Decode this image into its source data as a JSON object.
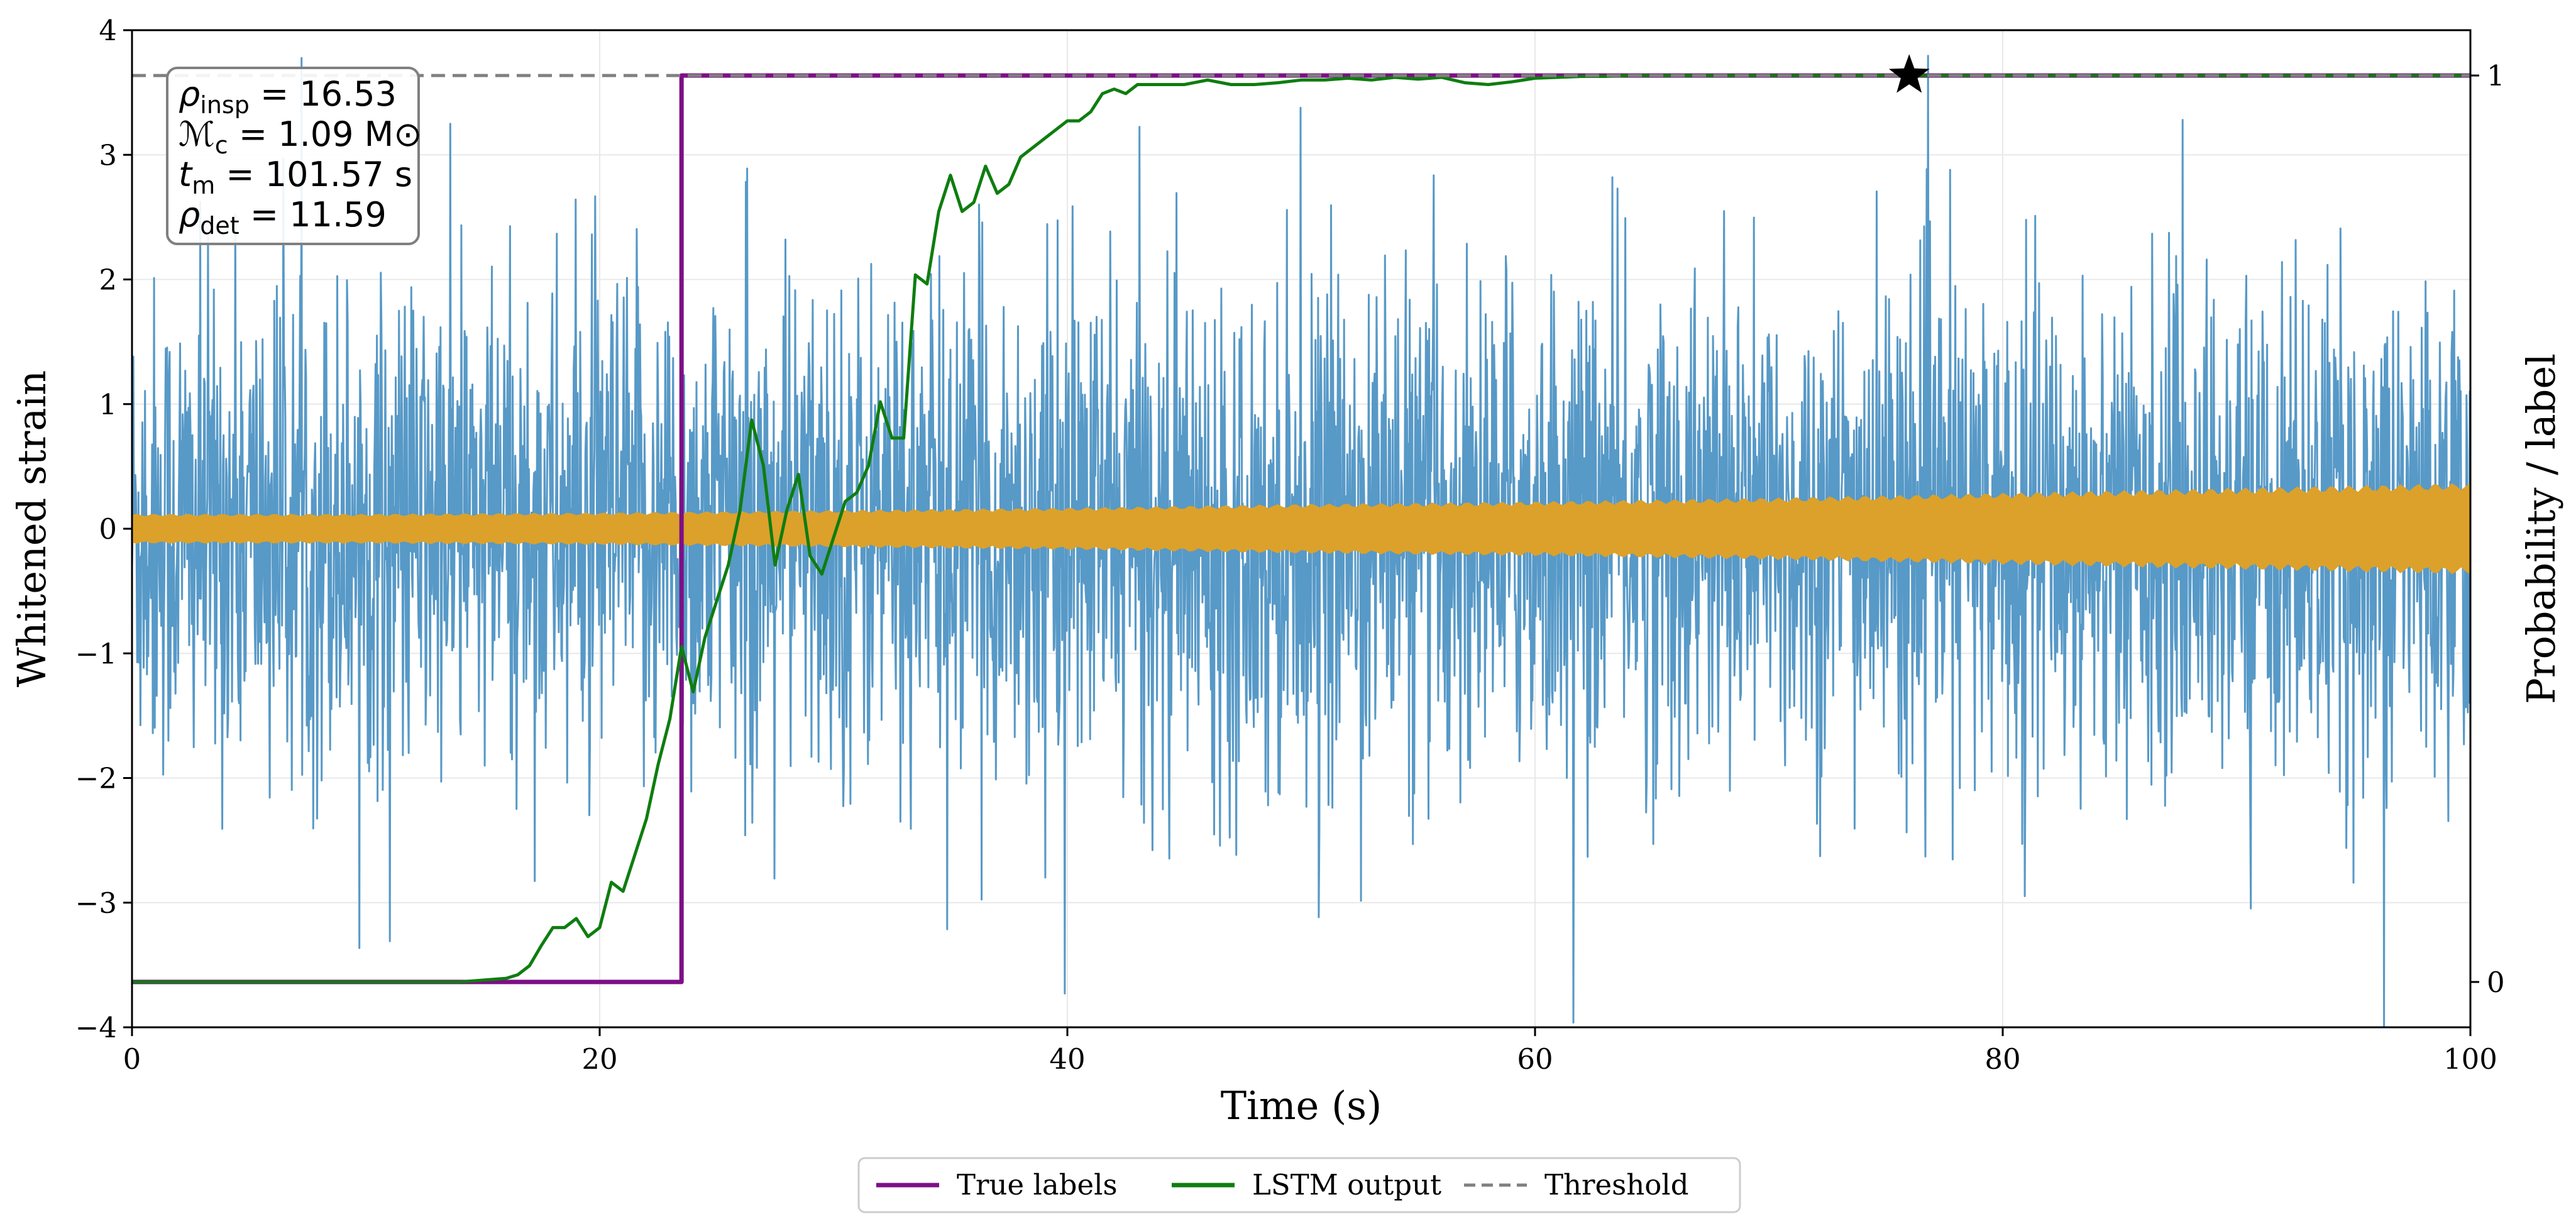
{
  "chart_data": {
    "type": "line",
    "xlabel": "Time (s)",
    "ylabel": "Whitened strain",
    "y2label": "Probability / label",
    "xlim": [
      0,
      100
    ],
    "ylim": [
      -4,
      4
    ],
    "y2lim": [
      -0.05,
      1.05
    ],
    "xticks": [
      0,
      20,
      40,
      60,
      80,
      100
    ],
    "xtick_labels": [
      "0",
      "20",
      "40",
      "60",
      "80",
      "100"
    ],
    "yticks": [
      -4,
      -3,
      -2,
      -1,
      0,
      1,
      2,
      3,
      4
    ],
    "ytick_labels": [
      "−4",
      "−3",
      "−2",
      "−1",
      "0",
      "1",
      "2",
      "3",
      "4"
    ],
    "y2ticks": [
      0,
      1
    ],
    "y2tick_labels": [
      "0",
      "1"
    ],
    "grid": true,
    "colors": {
      "noise": "#5799c7",
      "signal": "#dca12a",
      "true_labels": "#7d0f86",
      "lstm": "#0f7d0f",
      "threshold": "#808080",
      "star": "#000000"
    },
    "annotation": {
      "lines": [
        {
          "sym": "ρ",
          "sub": "insp",
          "rest": " = 16.53"
        },
        {
          "sym": "ℳ",
          "sub": "c",
          "rest": " = 1.09 M⊙"
        },
        {
          "sym": "t",
          "sub": "m",
          "rest": " = 101.57 s"
        },
        {
          "sym": "ρ",
          "sub": "det",
          "rest": " = 11.59"
        }
      ]
    },
    "series": [
      {
        "name": "True labels",
        "axis": "right",
        "x": [
          0,
          23.5,
          23.5,
          100
        ],
        "y": [
          0,
          0,
          1,
          1
        ]
      },
      {
        "name": "LSTM output",
        "axis": "right",
        "x": [
          0,
          2,
          4,
          6,
          8,
          10,
          12,
          14,
          15,
          16,
          16.5,
          17,
          17.5,
          18,
          18.5,
          19,
          19.5,
          20,
          20.5,
          21,
          21.5,
          22,
          22.5,
          23,
          23.5,
          24,
          24.5,
          25,
          25.5,
          26,
          26.5,
          27,
          27.5,
          28,
          28.5,
          29,
          29.5,
          30,
          30.5,
          31,
          31.5,
          32,
          32.5,
          33,
          33.5,
          34,
          34.5,
          35,
          35.5,
          36,
          36.5,
          37,
          37.5,
          38,
          39,
          40,
          40.5,
          41,
          41.5,
          42,
          42.5,
          43,
          44,
          45,
          46,
          47,
          48,
          49,
          50,
          51,
          52,
          53,
          54,
          55,
          56,
          57,
          58,
          59,
          60,
          61,
          62,
          63,
          64,
          65,
          66,
          68,
          70,
          75,
          80,
          85,
          90,
          95,
          100
        ],
        "y": [
          0,
          0,
          0,
          0,
          0,
          0,
          0,
          0,
          0.002,
          0.004,
          0.008,
          0.018,
          0.04,
          0.06,
          0.06,
          0.07,
          0.05,
          0.06,
          0.11,
          0.1,
          0.14,
          0.18,
          0.24,
          0.29,
          0.37,
          0.32,
          0.38,
          0.42,
          0.46,
          0.52,
          0.62,
          0.57,
          0.46,
          0.52,
          0.56,
          0.47,
          0.45,
          0.49,
          0.53,
          0.54,
          0.57,
          0.64,
          0.6,
          0.6,
          0.78,
          0.77,
          0.85,
          0.89,
          0.85,
          0.86,
          0.9,
          0.87,
          0.88,
          0.91,
          0.93,
          0.95,
          0.95,
          0.96,
          0.98,
          0.985,
          0.98,
          0.99,
          0.99,
          0.99,
          0.995,
          0.99,
          0.99,
          0.992,
          0.995,
          0.995,
          0.997,
          0.995,
          0.998,
          0.996,
          0.998,
          0.992,
          0.99,
          0.993,
          0.997,
          0.998,
          0.999,
          0.999,
          1,
          1,
          1,
          1,
          1,
          1,
          1,
          1,
          1,
          1,
          1
        ]
      },
      {
        "name": "Threshold",
        "axis": "right",
        "x": [
          0,
          100
        ],
        "y": [
          1,
          1
        ]
      }
    ],
    "noise_band": {
      "name": "Whitened strain",
      "axis": "left",
      "x": [
        0,
        100
      ],
      "typical_amplitude": 1.6,
      "max_amplitude": 4.0,
      "note": "noisy whitened strain trace filling approximately ±2 range"
    },
    "signal_band": {
      "name": "Injected signal",
      "axis": "left",
      "x": [
        0,
        10,
        20,
        30,
        40,
        50,
        60,
        70,
        80,
        90,
        100
      ],
      "amplitude": [
        0.12,
        0.12,
        0.13,
        0.15,
        0.17,
        0.2,
        0.22,
        0.25,
        0.29,
        0.33,
        0.37
      ]
    },
    "marker": {
      "type": "star",
      "x": 76,
      "y": 1,
      "axis": "right"
    },
    "legend": {
      "placement": "bottom-center",
      "entries": [
        {
          "label": "True labels",
          "style": "solid",
          "color": "#7d0f86"
        },
        {
          "label": "LSTM output",
          "style": "solid",
          "color": "#0f7d0f"
        },
        {
          "label": "Threshold",
          "style": "dashed",
          "color": "#808080"
        }
      ]
    }
  }
}
